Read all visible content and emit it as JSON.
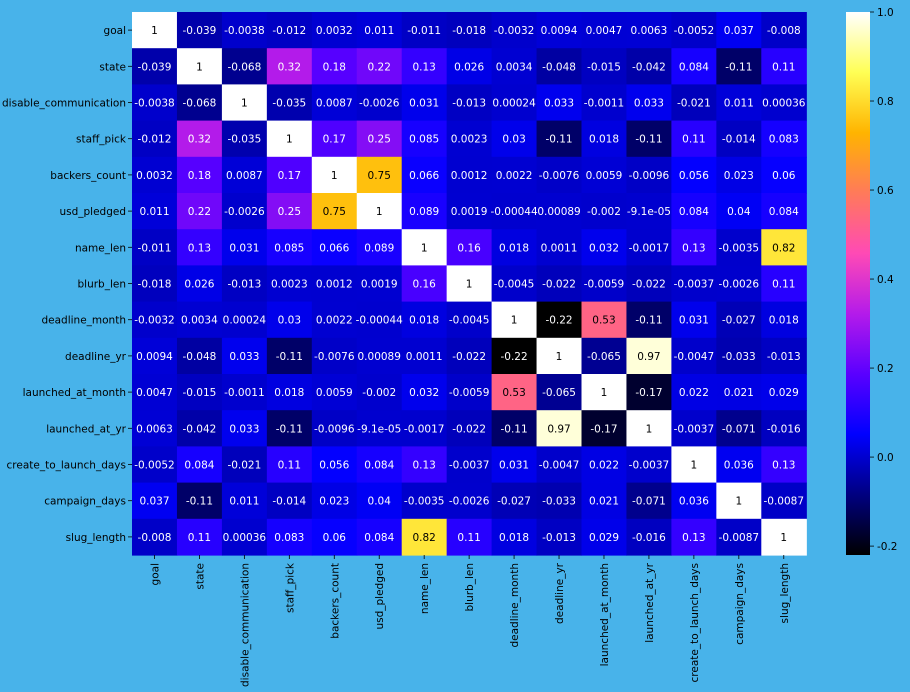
{
  "chart_data": {
    "type": "heatmap",
    "title": "",
    "xlabel": "",
    "ylabel": "",
    "labels": [
      "goal",
      "state",
      "disable_communication",
      "staff_pick",
      "backers_count",
      "usd_pledged",
      "name_len",
      "blurb_len",
      "deadline_month",
      "deadline_yr",
      "launched_at_month",
      "launched_at_yr",
      "create_to_launch_days",
      "campaign_days",
      "slug_length"
    ],
    "matrix": [
      [
        "1",
        "-0.039",
        "-0.0038",
        "-0.012",
        "0.0032",
        "0.011",
        "-0.011",
        "-0.018",
        "-0.0032",
        "0.0094",
        "0.0047",
        "0.0063",
        "-0.0052",
        "0.037",
        "-0.008"
      ],
      [
        "-0.039",
        "1",
        "-0.068",
        "0.32",
        "0.18",
        "0.22",
        "0.13",
        "0.026",
        "0.0034",
        "-0.048",
        "-0.015",
        "-0.042",
        "0.084",
        "-0.11",
        "0.11"
      ],
      [
        "-0.0038",
        "-0.068",
        "1",
        "-0.035",
        "0.0087",
        "-0.0026",
        "0.031",
        "-0.013",
        "0.00024",
        "0.033",
        "-0.0011",
        "0.033",
        "-0.021",
        "0.011",
        "0.00036"
      ],
      [
        "-0.012",
        "0.32",
        "-0.035",
        "1",
        "0.17",
        "0.25",
        "0.085",
        "0.0023",
        "0.03",
        "-0.11",
        "0.018",
        "-0.11",
        "0.11",
        "-0.014",
        "0.083"
      ],
      [
        "0.0032",
        "0.18",
        "0.0087",
        "0.17",
        "1",
        "0.75",
        "0.066",
        "0.0012",
        "0.0022",
        "-0.0076",
        "0.0059",
        "-0.0096",
        "0.056",
        "0.023",
        "0.06"
      ],
      [
        "0.011",
        "0.22",
        "-0.0026",
        "0.25",
        "0.75",
        "1",
        "0.089",
        "0.0019",
        "-0.00044",
        "0.00089",
        "-0.002",
        "-9.1e-05",
        "0.084",
        "0.04",
        "0.084"
      ],
      [
        "-0.011",
        "0.13",
        "0.031",
        "0.085",
        "0.066",
        "0.089",
        "1",
        "0.16",
        "0.018",
        "0.0011",
        "0.032",
        "-0.0017",
        "0.13",
        "-0.0035",
        "0.82"
      ],
      [
        "-0.018",
        "0.026",
        "-0.013",
        "0.0023",
        "0.0012",
        "0.0019",
        "0.16",
        "1",
        "-0.0045",
        "-0.022",
        "-0.0059",
        "-0.022",
        "-0.0037",
        "-0.0026",
        "0.11"
      ],
      [
        "-0.0032",
        "0.0034",
        "0.00024",
        "0.03",
        "0.0022",
        "-0.00044",
        "0.018",
        "-0.0045",
        "1",
        "-0.22",
        "0.53",
        "-0.11",
        "0.031",
        "-0.027",
        "0.018"
      ],
      [
        "0.0094",
        "-0.048",
        "0.033",
        "-0.11",
        "-0.0076",
        "0.00089",
        "0.0011",
        "-0.022",
        "-0.22",
        "1",
        "-0.065",
        "0.97",
        "-0.0047",
        "-0.033",
        "-0.013"
      ],
      [
        "0.0047",
        "-0.015",
        "-0.0011",
        "0.018",
        "0.0059",
        "-0.002",
        "0.032",
        "-0.0059",
        "0.53",
        "-0.065",
        "1",
        "-0.17",
        "0.022",
        "0.021",
        "0.029"
      ],
      [
        "0.0063",
        "-0.042",
        "0.033",
        "-0.11",
        "-0.0096",
        "-9.1e-05",
        "-0.0017",
        "-0.022",
        "-0.11",
        "0.97",
        "-0.17",
        "1",
        "-0.0037",
        "-0.071",
        "-0.016"
      ],
      [
        "-0.0052",
        "0.084",
        "-0.021",
        "0.11",
        "0.056",
        "0.084",
        "0.13",
        "-0.0037",
        "0.031",
        "-0.0047",
        "0.022",
        "-0.0037",
        "1",
        "0.036",
        "0.13"
      ],
      [
        "0.037",
        "-0.11",
        "0.011",
        "-0.014",
        "0.023",
        "0.04",
        "-0.0035",
        "-0.0026",
        "-0.027",
        "-0.033",
        "0.021",
        "-0.071",
        "0.036",
        "1",
        "-0.0087"
      ],
      [
        "-0.008",
        "0.11",
        "0.00036",
        "0.083",
        "0.06",
        "0.084",
        "0.82",
        "0.11",
        "0.018",
        "-0.013",
        "0.029",
        "-0.016",
        "0.13",
        "-0.0087",
        "1"
      ]
    ],
    "colorbar": {
      "colormap": "gnuplot2",
      "vmin": -0.22,
      "vmax": 1,
      "ticks": [
        "1.0",
        "0.8",
        "0.6",
        "0.4",
        "0.2",
        "0.0",
        "-0.2"
      ]
    },
    "colors": {
      "background": "#48b3ea",
      "cmap_stops": [
        "#000000",
        "#000080",
        "#0000ff",
        "#5a00ff",
        "#b41bea",
        "#ff4ab5",
        "#ff7a5a",
        "#ffb400",
        "#ffff55",
        "#ffffff"
      ]
    }
  }
}
